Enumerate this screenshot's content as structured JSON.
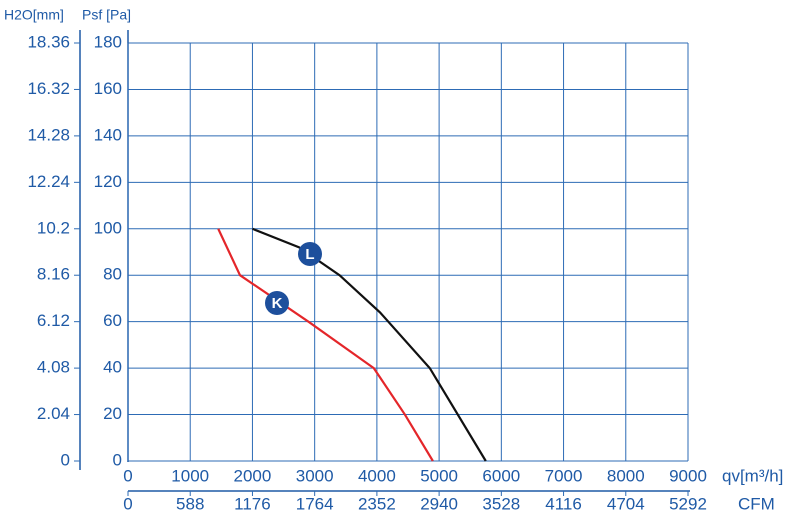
{
  "chart_data": {
    "type": "line",
    "y_label": "Psf [Pa]",
    "y2_label": "H2O[mm]",
    "x_label": "qv[m³/h]",
    "x2_label": "CFM",
    "xlim": [
      0,
      9000
    ],
    "xticks": [
      0,
      1000,
      2000,
      3000,
      4000,
      5000,
      6000,
      7000,
      8000,
      9000
    ],
    "x2lim": [
      0,
      5292
    ],
    "x2ticks": [
      0,
      588,
      1176,
      1764,
      2352,
      2940,
      3528,
      4116,
      4704,
      5292
    ],
    "ylim": [
      0,
      180
    ],
    "yticks": [
      0,
      20,
      40,
      60,
      80,
      100,
      120,
      140,
      160,
      180
    ],
    "y2lim": [
      0,
      18.36
    ],
    "y2ticks": [
      0,
      2.04,
      4.08,
      6.12,
      8.16,
      10.2,
      12.24,
      14.28,
      16.32,
      18.36
    ],
    "grid": true,
    "series": [
      {
        "name": "L",
        "color": "#111111",
        "x": [
          2000,
          2750,
          3400,
          4050,
          4850,
          5750
        ],
        "values": [
          100,
          92,
          80,
          64,
          40,
          0
        ]
      },
      {
        "name": "K",
        "color": "#e4262a",
        "x": [
          1450,
          1800,
          2900,
          3950,
          4450,
          4900
        ],
        "values": [
          100,
          80,
          60,
          40,
          20,
          0
        ]
      }
    ]
  }
}
